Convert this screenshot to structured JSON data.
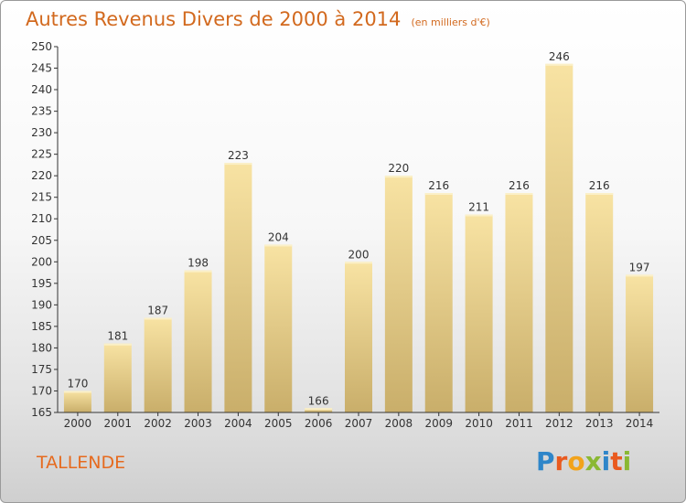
{
  "title": "Autres Revenus Divers de 2000 à 2014",
  "subtitle": "(en milliers d'€)",
  "city": "TALLENDE",
  "logo": {
    "text": "Proxiti",
    "letters": [
      {
        "ch": "P",
        "color": "#2f86c9"
      },
      {
        "ch": "r",
        "color": "#e95a1f"
      },
      {
        "ch": "o",
        "color": "#f2a31b"
      },
      {
        "ch": "x",
        "color": "#8ab833"
      },
      {
        "ch": "i",
        "color": "#2f86c9"
      },
      {
        "ch": "t",
        "color": "#e95a1f"
      },
      {
        "ch": "i",
        "color": "#8ab833"
      }
    ]
  },
  "colors": {
    "title": "#d2691e",
    "city": "#e66a1e",
    "bar_light": "#f8e3a3",
    "bar_dark": "#c9ae6a",
    "axis": "#333333"
  },
  "chart_data": {
    "type": "bar",
    "categories": [
      "2000",
      "2001",
      "2002",
      "2003",
      "2004",
      "2005",
      "2006",
      "2007",
      "2008",
      "2009",
      "2010",
      "2011",
      "2012",
      "2013",
      "2014"
    ],
    "values": [
      170,
      181,
      187,
      198,
      223,
      204,
      166,
      200,
      220,
      216,
      211,
      216,
      246,
      216,
      197
    ],
    "ylim": [
      165,
      250
    ],
    "yticks": [
      165,
      170,
      175,
      180,
      185,
      190,
      195,
      200,
      205,
      210,
      215,
      220,
      225,
      230,
      235,
      240,
      245,
      250
    ],
    "grid": false
  }
}
